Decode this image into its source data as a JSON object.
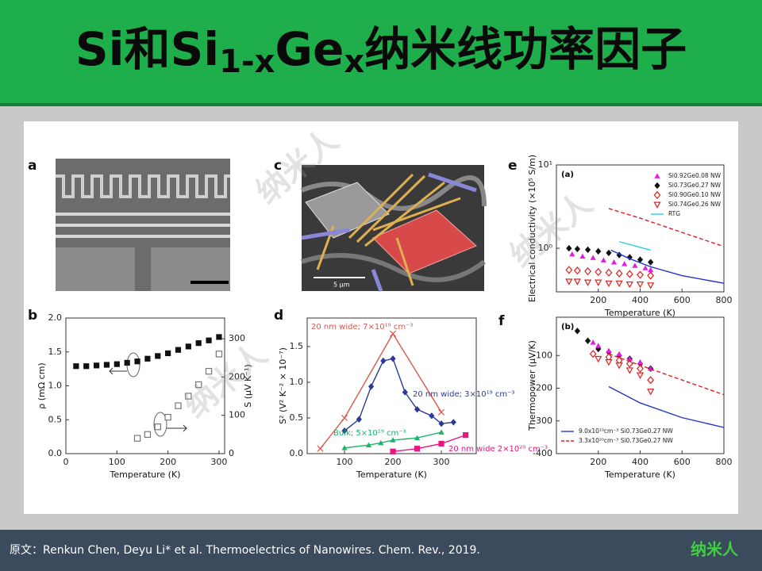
{
  "header": {
    "title": [
      "Si和Si",
      "1-x",
      "Ge",
      "x",
      "纳米线功率因子"
    ]
  },
  "figures": [
    {
      "panel": "a"
    },
    {
      "panel": "c",
      "scale_bar": "5 μm"
    }
  ],
  "watermark": "纳米人",
  "footer": {
    "citation": "原文：Renkun Chen, Deyu Li* et al. Thermoelectrics of Nanowires. Chem. Rev., 2019.",
    "logo": "纳米人"
  },
  "chart_data": [
    {
      "type": "scatter",
      "panel": "b",
      "x_label": "Temperature (K)",
      "y_label": "ρ (mΩ cm)",
      "y2_label": "S (μV K⁻¹)",
      "xlim": [
        0,
        311
      ],
      "xticks": [
        0,
        100,
        200,
        300
      ],
      "ylim": [
        0,
        2.0
      ],
      "yticks": [
        {
          "value": 0,
          "label": "0.0"
        },
        0.5,
        {
          "value": 1,
          "label": "1.0"
        },
        1.5,
        {
          "value": 2,
          "label": "2.0"
        }
      ],
      "y2lim": [
        0,
        354
      ],
      "y2ticks": [
        0,
        100,
        200,
        300
      ],
      "series": [
        {
          "color": "#111111",
          "marker": "square",
          "x": [
            20,
            40,
            60,
            80,
            100,
            120,
            140,
            160,
            180,
            200,
            220,
            240,
            260,
            280,
            300
          ],
          "values": [
            1.29,
            1.29,
            1.3,
            1.31,
            1.32,
            1.34,
            1.36,
            1.4,
            1.44,
            1.48,
            1.53,
            1.58,
            1.63,
            1.67,
            1.72
          ]
        },
        {
          "color": "#777777",
          "marker": "square-open",
          "axis": "y2",
          "x": [
            140,
            160,
            180,
            200,
            220,
            240,
            260,
            280,
            300
          ],
          "values": [
            40,
            50,
            70,
            95,
            125,
            150,
            180,
            215,
            260
          ]
        }
      ]
    },
    {
      "type": "line",
      "panel": "d",
      "x_label": "Temperature (K)",
      "y_label": "S² (V² K⁻² × 10⁻⁷)",
      "labels": "inline",
      "xlim": [
        23,
        372
      ],
      "xticks": [
        100,
        200,
        300
      ],
      "ylim": [
        0,
        1.9
      ],
      "yticks": [
        {
          "value": 0,
          "label": "0.0"
        },
        0.5,
        {
          "value": 1,
          "label": "1.0"
        },
        1.5
      ],
      "series": [
        {
          "name": "20 nm wide; 7×10¹⁹ cm⁻³",
          "color": "#d9574c",
          "marker": "x",
          "line": true,
          "x": [
            50,
            100,
            200,
            300
          ],
          "values": [
            0.07,
            0.5,
            1.68,
            0.58
          ]
        },
        {
          "name": "20 nm wide; 3×10¹⁹ cm⁻³",
          "color": "#2b3a9a",
          "marker": "diamond",
          "line": true,
          "x": [
            100,
            130,
            155,
            180,
            200,
            225,
            250,
            280,
            300,
            325
          ],
          "values": [
            0.32,
            0.48,
            0.94,
            1.3,
            1.33,
            0.86,
            0.62,
            0.53,
            0.42,
            0.44
          ]
        },
        {
          "name": "Bulk; 5×10¹⁹ cm⁻³",
          "color": "#1bb36a",
          "marker": "triangle",
          "line": true,
          "x": [
            100,
            150,
            175,
            200,
            250,
            300
          ],
          "values": [
            0.08,
            0.12,
            0.15,
            0.19,
            0.22,
            0.3
          ]
        },
        {
          "name": "20 nm wide 2×10²⁰ cm⁻³",
          "color": "#e8177d",
          "marker": "square",
          "line": true,
          "x": [
            200,
            250,
            300,
            350
          ],
          "values": [
            0.03,
            0.07,
            0.14,
            0.26
          ]
        }
      ]
    },
    {
      "type": "scatter",
      "panel": "e",
      "subtitle": "(a)",
      "x_label": "Temperature (K)",
      "y_label": "Electrical conductivity (×10⁵ S/m)",
      "log": true,
      "legend": "upper right",
      "xlim": [
        0,
        800
      ],
      "xticks": [
        200,
        400,
        600,
        800
      ],
      "ylim": [
        0.3,
        10
      ],
      "yticks": [
        {
          "value": 1,
          "label": "10⁰"
        },
        {
          "value": 10,
          "label": "10¹"
        }
      ],
      "series": [
        {
          "name": "Si0.92Ge0.08 NW",
          "color": "#e020e0",
          "marker": "triangle",
          "x": [
            75,
            125,
            175,
            225,
            275,
            325,
            375,
            425,
            450
          ],
          "values": [
            0.85,
            0.8,
            0.77,
            0.72,
            0.68,
            0.65,
            0.62,
            0.58,
            0.55
          ]
        },
        {
          "name": "Si0.73Ge0.27 NW",
          "color": "#111111",
          "marker": "diamond",
          "x": [
            60,
            100,
            150,
            200,
            250,
            300,
            350,
            400,
            450
          ],
          "values": [
            1.0,
            0.98,
            0.96,
            0.92,
            0.88,
            0.83,
            0.78,
            0.73,
            0.68
          ]
        },
        {
          "name": "Si0.90Ge0.10 NW",
          "color": "#e02020",
          "marker": "diamond-open",
          "x": [
            60,
            100,
            150,
            200,
            250,
            300,
            350,
            400,
            450
          ],
          "values": [
            0.55,
            0.54,
            0.53,
            0.52,
            0.51,
            0.5,
            0.49,
            0.48,
            0.47
          ]
        },
        {
          "name": "Si0.74Ge0.26 NW",
          "color": "#e02020",
          "marker": "triangle-down-open",
          "x": [
            60,
            100,
            150,
            200,
            250,
            300,
            350,
            400,
            450
          ],
          "values": [
            0.4,
            0.4,
            0.39,
            0.39,
            0.38,
            0.38,
            0.37,
            0.37,
            0.36
          ]
        },
        {
          "name": "RTG",
          "color": "#22d0e0",
          "marker": "line",
          "x": [
            300,
            450
          ],
          "values": [
            1.2,
            0.95
          ]
        },
        {
          "color": "#2233cc",
          "marker": "line",
          "x": [
            260,
            350,
            450,
            600,
            800
          ],
          "values": [
            0.95,
            0.75,
            0.6,
            0.47,
            0.38
          ]
        },
        {
          "color": "#e02020",
          "marker": "line",
          "dash": true,
          "x": [
            250,
            400,
            600,
            800
          ],
          "values": [
            3.0,
            2.3,
            1.55,
            1.05
          ]
        }
      ]
    },
    {
      "type": "scatter",
      "panel": "f",
      "subtitle": "(b)",
      "x_label": "Temperature (K)",
      "y_label": "Thermopower (μV/K)",
      "legend": "lower left",
      "xlim": [
        0,
        800
      ],
      "xticks": [
        200,
        400,
        600,
        800
      ],
      "ylim": [
        -400,
        17
      ],
      "yticks": [
        -400,
        -300,
        -200,
        -100
      ],
      "series": [
        {
          "color": "#111111",
          "marker": "diamond",
          "x": [
            100,
            150,
            200,
            250,
            300,
            350,
            400,
            450
          ],
          "values": [
            -25,
            -55,
            -80,
            -90,
            -100,
            -110,
            -125,
            -140
          ]
        },
        {
          "color": "#e020e0",
          "marker": "triangle",
          "x": [
            175,
            200,
            250,
            300,
            350,
            400,
            450
          ],
          "values": [
            -60,
            -70,
            -85,
            -95,
            -110,
            -120,
            -140
          ]
        },
        {
          "color": "#e02020",
          "marker": "diamond-open",
          "x": [
            175,
            250,
            300,
            350,
            400,
            450
          ],
          "values": [
            -95,
            -105,
            -115,
            -125,
            -140,
            -175
          ]
        },
        {
          "color": "#e02020",
          "marker": "triangle-down-open",
          "x": [
            200,
            250,
            300,
            350,
            400,
            450
          ],
          "values": [
            -110,
            -120,
            -130,
            -145,
            -160,
            -210
          ]
        },
        {
          "name": "9.0x10¹⁹cm⁻³ Si0.73Ge0.27 NW",
          "color": "#2233cc",
          "marker": "line",
          "x": [
            250,
            400,
            600,
            800
          ],
          "values": [
            -195,
            -245,
            -290,
            -320
          ]
        },
        {
          "name": "3.3x10²⁰cm⁻³ Si0.73Ge0.27 NW",
          "color": "#e02020",
          "marker": "line",
          "dash": true,
          "x": [
            250,
            400,
            600,
            800
          ],
          "values": [
            -95,
            -130,
            -175,
            -220
          ]
        }
      ]
    }
  ]
}
